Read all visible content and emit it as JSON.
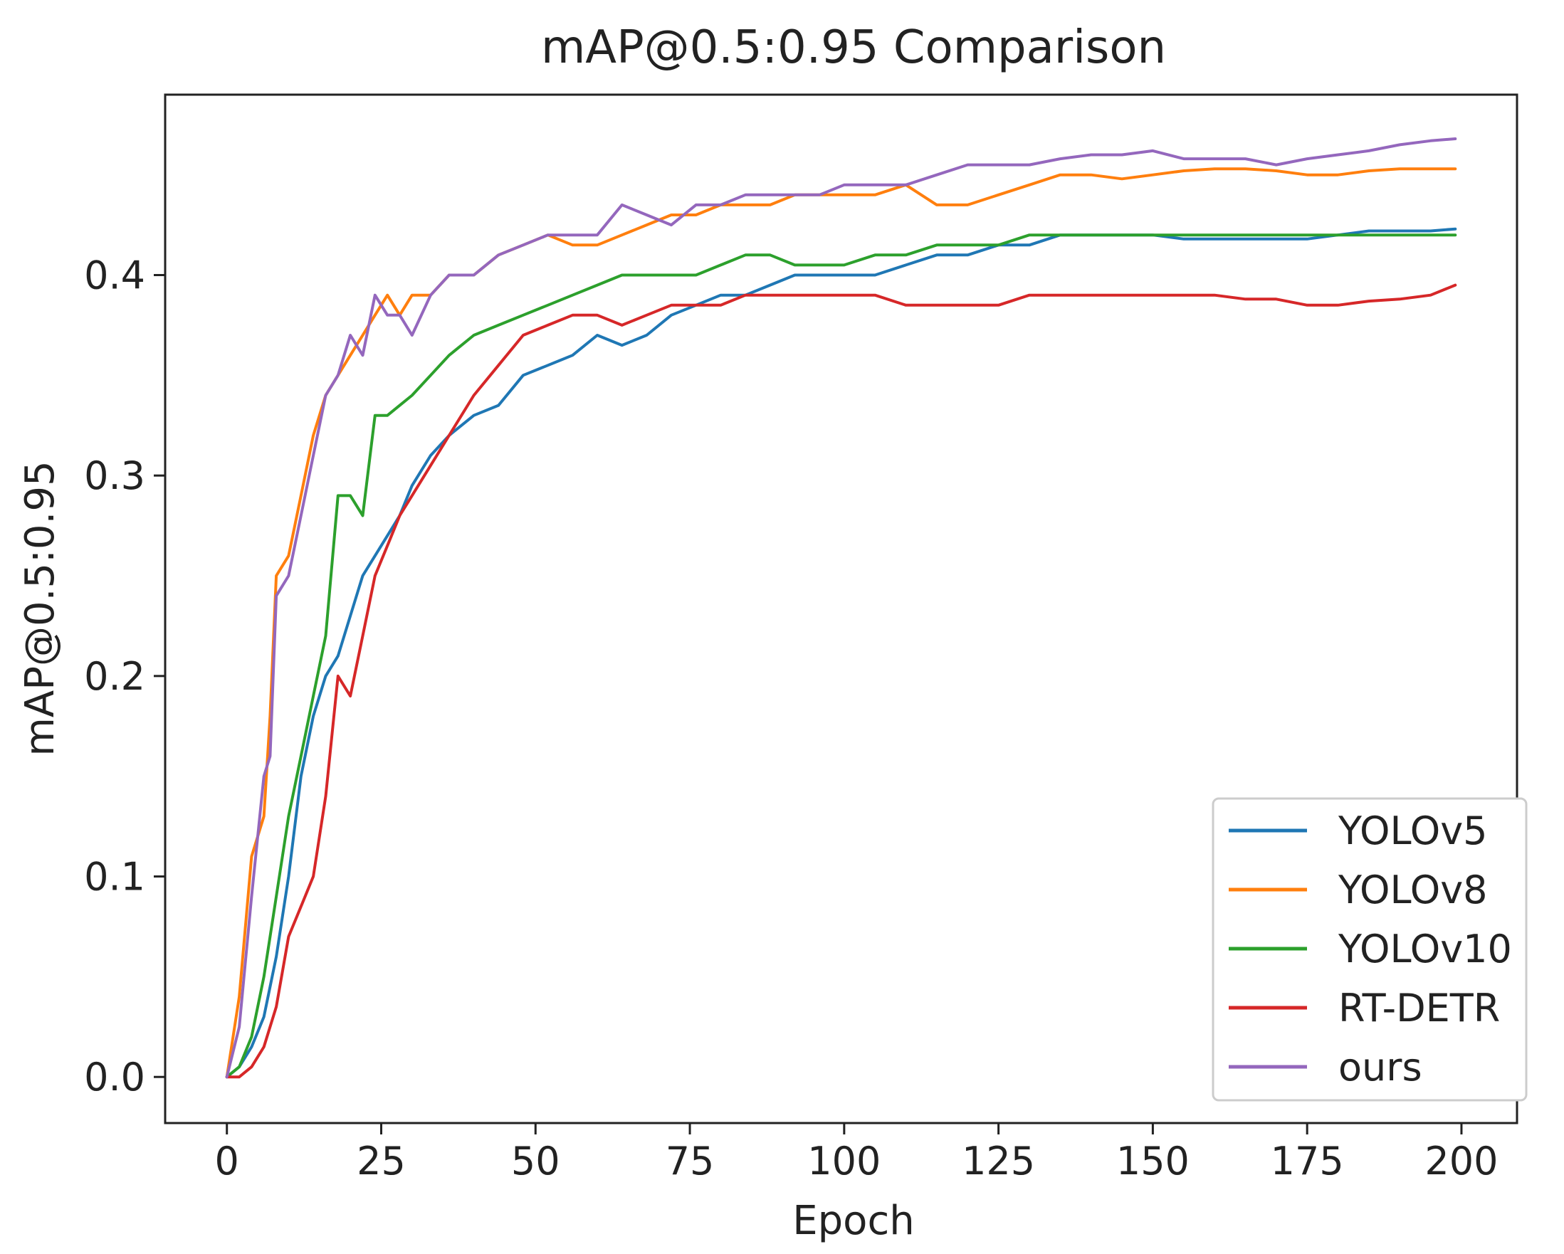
{
  "chart_data": {
    "type": "line",
    "title": "mAP@0.5:0.95 Comparison",
    "xlabel": "Epoch",
    "ylabel": "mAP@0.5:0.95",
    "xlim": [
      -10,
      209
    ],
    "ylim": [
      -0.023,
      0.49
    ],
    "xticks": [
      0,
      25,
      50,
      75,
      100,
      125,
      150,
      175,
      200
    ],
    "yticks": [
      0.0,
      0.1,
      0.2,
      0.3,
      0.4
    ],
    "xtick_labels": [
      "0",
      "25",
      "50",
      "75",
      "100",
      "125",
      "150",
      "175",
      "200"
    ],
    "ytick_labels": [
      "0.0",
      "0.1",
      "0.2",
      "0.3",
      "0.4"
    ],
    "grid": false,
    "legend_position": "lower-right",
    "series": [
      {
        "name": "YOLOv5",
        "color": "#1f77b4",
        "x": [
          0,
          2,
          4,
          6,
          8,
          10,
          12,
          14,
          16,
          18,
          20,
          22,
          24,
          26,
          28,
          30,
          33,
          36,
          40,
          44,
          48,
          52,
          56,
          60,
          64,
          68,
          72,
          76,
          80,
          84,
          88,
          92,
          96,
          100,
          105,
          110,
          115,
          120,
          125,
          130,
          135,
          140,
          145,
          150,
          155,
          160,
          165,
          170,
          175,
          180,
          185,
          190,
          195,
          199
        ],
        "values": [
          0.0,
          0.005,
          0.015,
          0.03,
          0.06,
          0.1,
          0.15,
          0.18,
          0.2,
          0.21,
          0.23,
          0.25,
          0.26,
          0.27,
          0.28,
          0.295,
          0.31,
          0.32,
          0.33,
          0.335,
          0.35,
          0.355,
          0.36,
          0.37,
          0.365,
          0.37,
          0.38,
          0.385,
          0.39,
          0.39,
          0.395,
          0.4,
          0.4,
          0.4,
          0.4,
          0.405,
          0.41,
          0.41,
          0.415,
          0.415,
          0.42,
          0.42,
          0.42,
          0.42,
          0.418,
          0.418,
          0.418,
          0.418,
          0.418,
          0.42,
          0.422,
          0.422,
          0.422,
          0.423
        ]
      },
      {
        "name": "YOLOv8",
        "color": "#ff7f0e",
        "x": [
          0,
          2,
          4,
          6,
          7,
          8,
          10,
          12,
          14,
          16,
          18,
          20,
          22,
          24,
          26,
          28,
          30,
          33,
          36,
          40,
          44,
          48,
          52,
          56,
          60,
          64,
          68,
          72,
          76,
          80,
          84,
          88,
          92,
          96,
          100,
          105,
          110,
          115,
          120,
          125,
          130,
          135,
          140,
          145,
          150,
          155,
          160,
          165,
          170,
          175,
          180,
          185,
          190,
          195,
          199
        ],
        "values": [
          0.0,
          0.04,
          0.11,
          0.13,
          0.18,
          0.25,
          0.26,
          0.29,
          0.32,
          0.34,
          0.35,
          0.36,
          0.37,
          0.38,
          0.39,
          0.38,
          0.39,
          0.39,
          0.4,
          0.4,
          0.41,
          0.415,
          0.42,
          0.415,
          0.415,
          0.42,
          0.425,
          0.43,
          0.43,
          0.435,
          0.435,
          0.435,
          0.44,
          0.44,
          0.44,
          0.44,
          0.445,
          0.435,
          0.435,
          0.44,
          0.445,
          0.45,
          0.45,
          0.448,
          0.45,
          0.452,
          0.453,
          0.453,
          0.452,
          0.45,
          0.45,
          0.452,
          0.453,
          0.453,
          0.453
        ]
      },
      {
        "name": "YOLOv10",
        "color": "#2ca02c",
        "x": [
          0,
          2,
          4,
          6,
          8,
          10,
          12,
          14,
          16,
          18,
          20,
          22,
          24,
          26,
          28,
          30,
          33,
          36,
          40,
          44,
          48,
          52,
          56,
          60,
          64,
          68,
          72,
          76,
          80,
          84,
          88,
          92,
          96,
          100,
          105,
          110,
          115,
          120,
          125,
          130,
          135,
          140,
          145,
          150,
          155,
          160,
          165,
          170,
          175,
          180,
          185,
          190,
          195,
          199
        ],
        "values": [
          0.0,
          0.005,
          0.02,
          0.05,
          0.09,
          0.13,
          0.16,
          0.19,
          0.22,
          0.29,
          0.29,
          0.28,
          0.33,
          0.33,
          0.335,
          0.34,
          0.35,
          0.36,
          0.37,
          0.375,
          0.38,
          0.385,
          0.39,
          0.395,
          0.4,
          0.4,
          0.4,
          0.4,
          0.405,
          0.41,
          0.41,
          0.405,
          0.405,
          0.405,
          0.41,
          0.41,
          0.415,
          0.415,
          0.415,
          0.42,
          0.42,
          0.42,
          0.42,
          0.42,
          0.42,
          0.42,
          0.42,
          0.42,
          0.42,
          0.42,
          0.42,
          0.42,
          0.42,
          0.42
        ]
      },
      {
        "name": "RT-DETR",
        "color": "#d62728",
        "x": [
          0,
          2,
          4,
          6,
          8,
          10,
          12,
          14,
          16,
          18,
          20,
          22,
          24,
          26,
          28,
          30,
          33,
          36,
          40,
          44,
          48,
          52,
          56,
          60,
          64,
          68,
          72,
          76,
          80,
          84,
          88,
          92,
          96,
          100,
          105,
          110,
          115,
          120,
          125,
          130,
          135,
          140,
          145,
          150,
          155,
          160,
          165,
          170,
          175,
          180,
          185,
          190,
          195,
          199
        ],
        "values": [
          0.0,
          0.0,
          0.005,
          0.015,
          0.035,
          0.07,
          0.085,
          0.1,
          0.14,
          0.2,
          0.19,
          0.22,
          0.25,
          0.265,
          0.28,
          0.29,
          0.305,
          0.32,
          0.34,
          0.355,
          0.37,
          0.375,
          0.38,
          0.38,
          0.375,
          0.38,
          0.385,
          0.385,
          0.385,
          0.39,
          0.39,
          0.39,
          0.39,
          0.39,
          0.39,
          0.385,
          0.385,
          0.385,
          0.385,
          0.39,
          0.39,
          0.39,
          0.39,
          0.39,
          0.39,
          0.39,
          0.388,
          0.388,
          0.385,
          0.385,
          0.387,
          0.388,
          0.39,
          0.395
        ]
      },
      {
        "name": "ours",
        "color": "#9467bd",
        "x": [
          0,
          2,
          4,
          6,
          7,
          8,
          10,
          12,
          14,
          16,
          18,
          20,
          22,
          24,
          26,
          28,
          30,
          33,
          36,
          40,
          44,
          48,
          52,
          56,
          60,
          64,
          68,
          72,
          76,
          80,
          84,
          88,
          92,
          96,
          100,
          105,
          110,
          115,
          120,
          125,
          130,
          135,
          140,
          145,
          150,
          155,
          160,
          165,
          170,
          175,
          180,
          185,
          190,
          195,
          199
        ],
        "values": [
          0.0,
          0.025,
          0.09,
          0.15,
          0.16,
          0.24,
          0.25,
          0.28,
          0.31,
          0.34,
          0.35,
          0.37,
          0.36,
          0.39,
          0.38,
          0.38,
          0.37,
          0.39,
          0.4,
          0.4,
          0.41,
          0.415,
          0.42,
          0.42,
          0.42,
          0.435,
          0.43,
          0.425,
          0.435,
          0.435,
          0.44,
          0.44,
          0.44,
          0.44,
          0.445,
          0.445,
          0.445,
          0.45,
          0.455,
          0.455,
          0.455,
          0.458,
          0.46,
          0.46,
          0.462,
          0.458,
          0.458,
          0.458,
          0.455,
          0.458,
          0.46,
          0.462,
          0.465,
          0.467,
          0.468
        ]
      }
    ]
  }
}
